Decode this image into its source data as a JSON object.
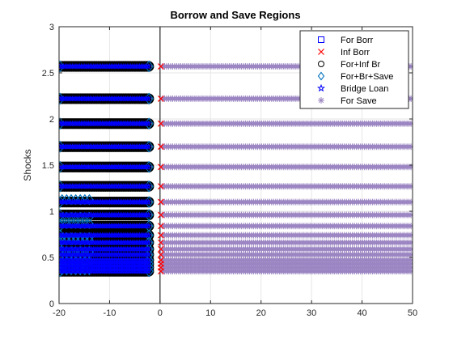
{
  "chart_data": {
    "type": "scatter",
    "title": "Borrow and Save Regions",
    "xlabel": "",
    "ylabel": "Shocks",
    "xlim": [
      -20,
      50
    ],
    "ylim": [
      0,
      3
    ],
    "xticks": [
      -20,
      -10,
      0,
      10,
      20,
      30,
      40,
      50
    ],
    "yticks": [
      0,
      0.5,
      1,
      1.5,
      2,
      2.5,
      3
    ],
    "grid": true,
    "legend_position": "top-right",
    "shock_levels": [
      2.57,
      2.22,
      1.95,
      1.7,
      1.48,
      1.27,
      1.1,
      0.96,
      0.84,
      0.74,
      0.66,
      0.59,
      0.53,
      0.47,
      0.43,
      0.39,
      0.35
    ],
    "series": [
      {
        "name": "For Borr",
        "marker": "square",
        "color": "#0000ff",
        "x_range": [
          -19.8,
          -2.2
        ]
      },
      {
        "name": "Inf Borr",
        "marker": "x",
        "color": "#ff0000",
        "x_range": [
          -0.5,
          0.5
        ]
      },
      {
        "name": "For+Inf Br",
        "marker": "circle",
        "color": "#000000",
        "x_range": [
          -19.8,
          -2.2
        ]
      },
      {
        "name": "For+Br+Save",
        "marker": "diamond",
        "color": "#0072bd",
        "x_range": [
          -19.8,
          -2.2
        ]
      },
      {
        "name": "Bridge Loan",
        "marker": "pentagram",
        "color": "#0000ff",
        "x_range": [
          -19.8,
          -2.2
        ]
      },
      {
        "name": "For Save",
        "marker": "asterisk",
        "color": "#9b85c2",
        "x_range": [
          0.5,
          50
        ]
      }
    ]
  }
}
